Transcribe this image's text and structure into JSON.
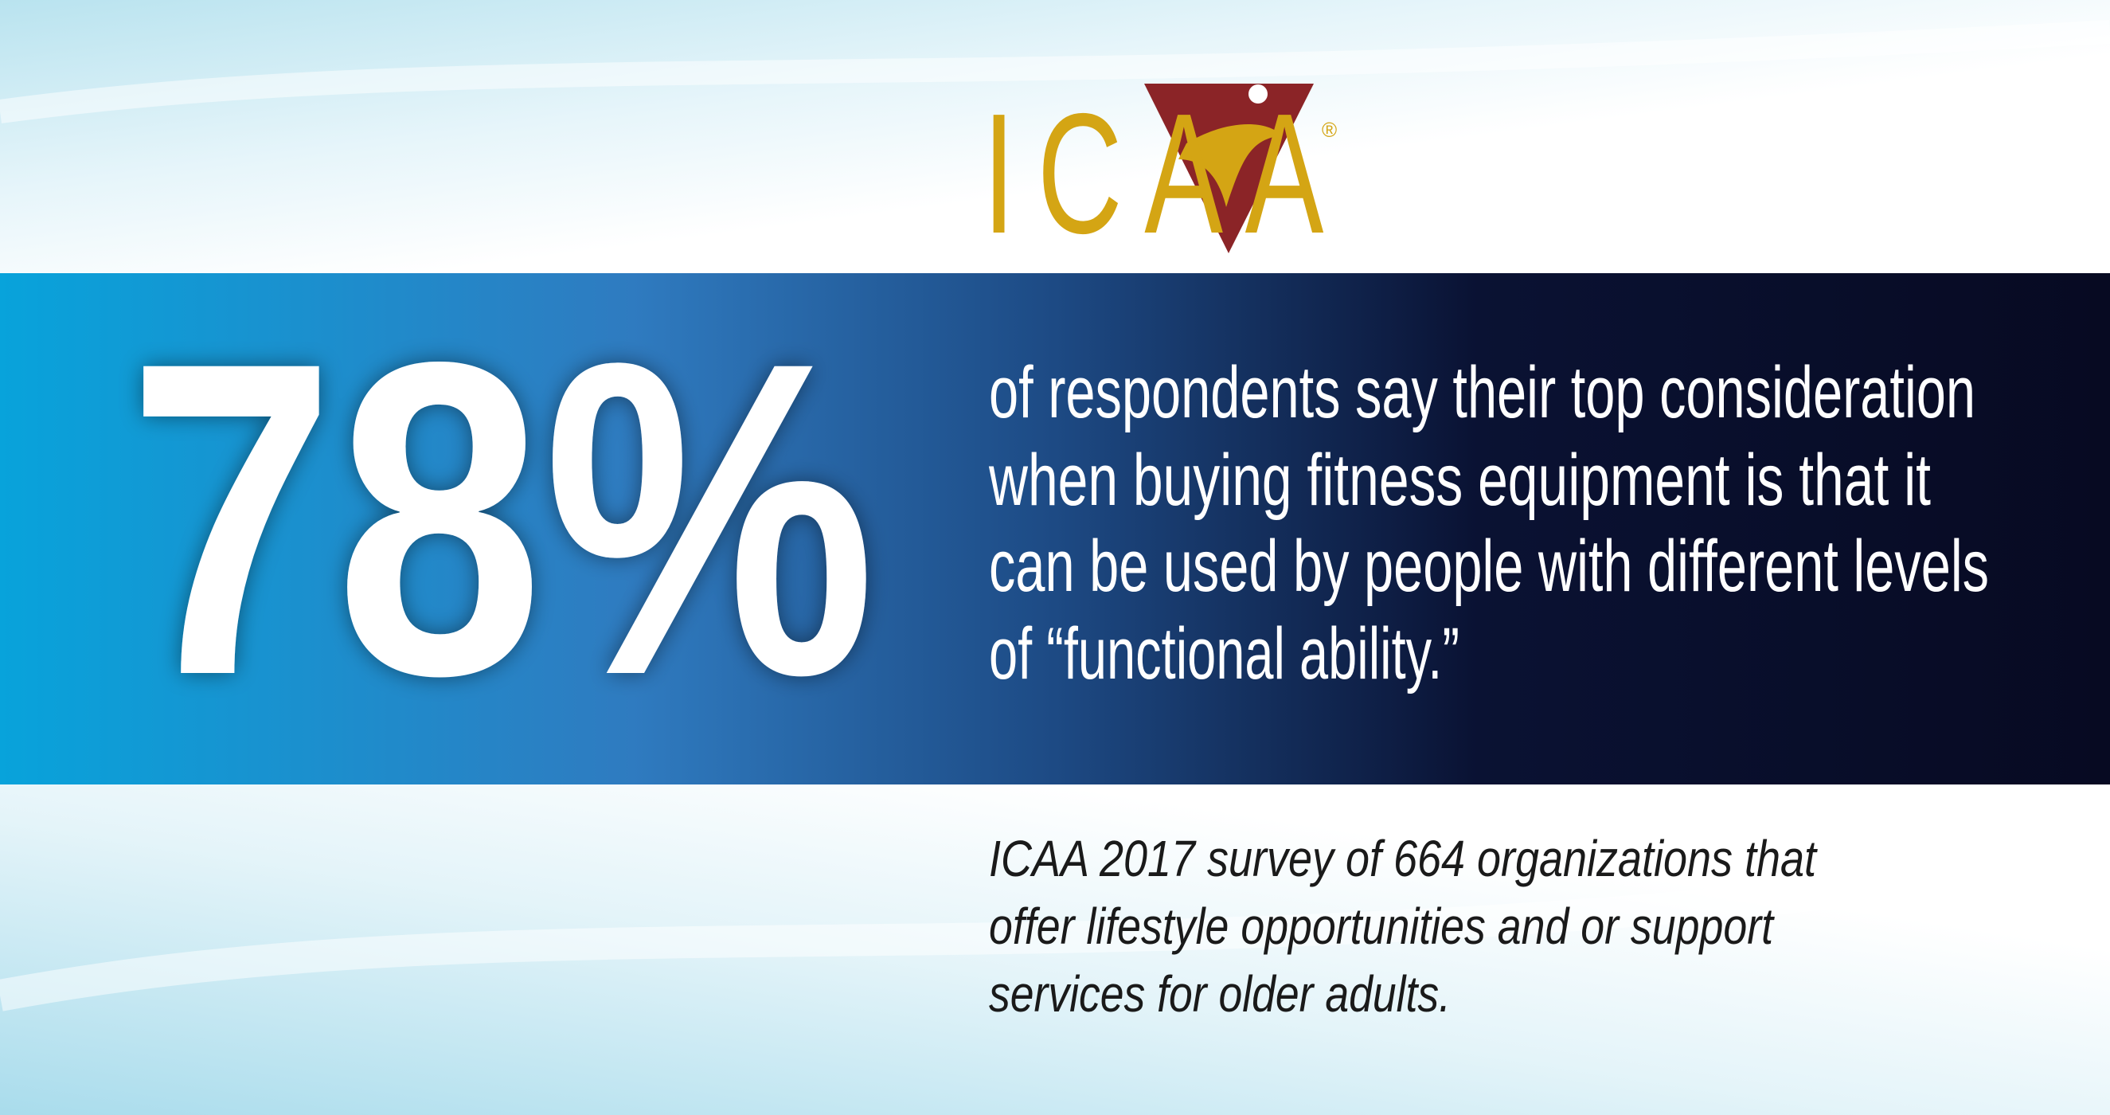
{
  "logo": {
    "text": "ICAA",
    "mark": "®"
  },
  "stat": "78%",
  "statement": [
    "of respondents say their top consideration",
    "when buying fitness equipment is that it",
    "can be used by people with different levels",
    "of “functional ability.”"
  ],
  "source": [
    "ICAA 2017 survey of 664 organizations that",
    "offer lifestyle opportunities and or support",
    "services for older adults."
  ]
}
